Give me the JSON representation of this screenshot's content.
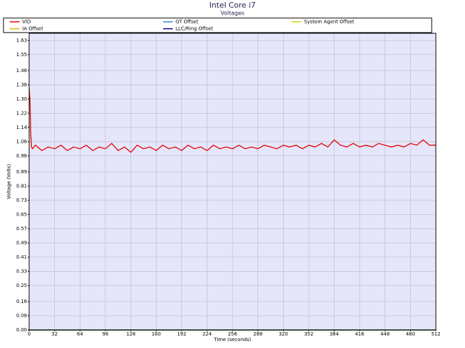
{
  "chart_data": {
    "type": "line",
    "title": "Intel Core i7",
    "subtitle": "Voltages",
    "x_label": "Time (seconds)",
    "y_label": "Voltage (Volts)",
    "xlim": [
      0,
      512
    ],
    "ylim": [
      0,
      1.67
    ],
    "xticks": [
      0,
      32,
      64,
      96,
      128,
      160,
      192,
      224,
      256,
      288,
      320,
      352,
      384,
      416,
      448,
      480,
      512
    ],
    "yticks": [
      {
        "value": 0,
        "label": "0.00"
      },
      0.08,
      0.16,
      0.25,
      0.33,
      0.41,
      0.49,
      0.57,
      0.65,
      0.73,
      0.81,
      0.89,
      0.98,
      1.06,
      1.14,
      1.22,
      {
        "value": 1.3,
        "label": "1.30"
      },
      1.38,
      1.46,
      1.55,
      1.63
    ],
    "grid": true,
    "background": "#e6e6fa",
    "series": [
      {
        "name": "VID",
        "color": "#e00000",
        "x": [
          0,
          1,
          2,
          3,
          4,
          8,
          16,
          24,
          32,
          40,
          48,
          56,
          64,
          72,
          80,
          88,
          96,
          104,
          112,
          120,
          128,
          136,
          144,
          152,
          160,
          168,
          176,
          184,
          192,
          200,
          208,
          216,
          224,
          232,
          240,
          248,
          256,
          264,
          272,
          280,
          288,
          296,
          304,
          312,
          320,
          328,
          336,
          344,
          352,
          360,
          368,
          376,
          384,
          392,
          400,
          408,
          416,
          424,
          432,
          440,
          448,
          456,
          464,
          472,
          480,
          488,
          496,
          504,
          512
        ],
        "values": [
          1.36,
          1.3,
          1.1,
          1.03,
          1.02,
          1.04,
          1.01,
          1.03,
          1.02,
          1.04,
          1.01,
          1.03,
          1.02,
          1.04,
          1.01,
          1.03,
          1.02,
          1.05,
          1.01,
          1.03,
          1.0,
          1.04,
          1.02,
          1.03,
          1.01,
          1.04,
          1.02,
          1.03,
          1.01,
          1.04,
          1.02,
          1.03,
          1.01,
          1.04,
          1.02,
          1.03,
          1.02,
          1.04,
          1.02,
          1.03,
          1.02,
          1.04,
          1.03,
          1.02,
          1.04,
          1.03,
          1.04,
          1.02,
          1.04,
          1.03,
          1.05,
          1.03,
          1.07,
          1.04,
          1.03,
          1.05,
          1.03,
          1.04,
          1.03,
          1.05,
          1.04,
          1.03,
          1.04,
          1.03,
          1.05,
          1.04,
          1.07,
          1.04,
          1.04
        ]
      },
      {
        "name": "GT Offset",
        "color": "#3a7fd0",
        "x": [
          0,
          512
        ],
        "values": [
          0,
          0
        ]
      },
      {
        "name": "System Agent Offset",
        "color": "#c8d400",
        "x": [
          0,
          512
        ],
        "values": [
          0,
          0
        ]
      },
      {
        "name": "IA Offset",
        "color": "#e0b000",
        "x": [
          0,
          512
        ],
        "values": [
          0,
          0
        ]
      },
      {
        "name": "LLC/Ring Offset",
        "color": "#000080",
        "x": [
          0,
          512
        ],
        "values": [
          0,
          0
        ]
      }
    ]
  }
}
